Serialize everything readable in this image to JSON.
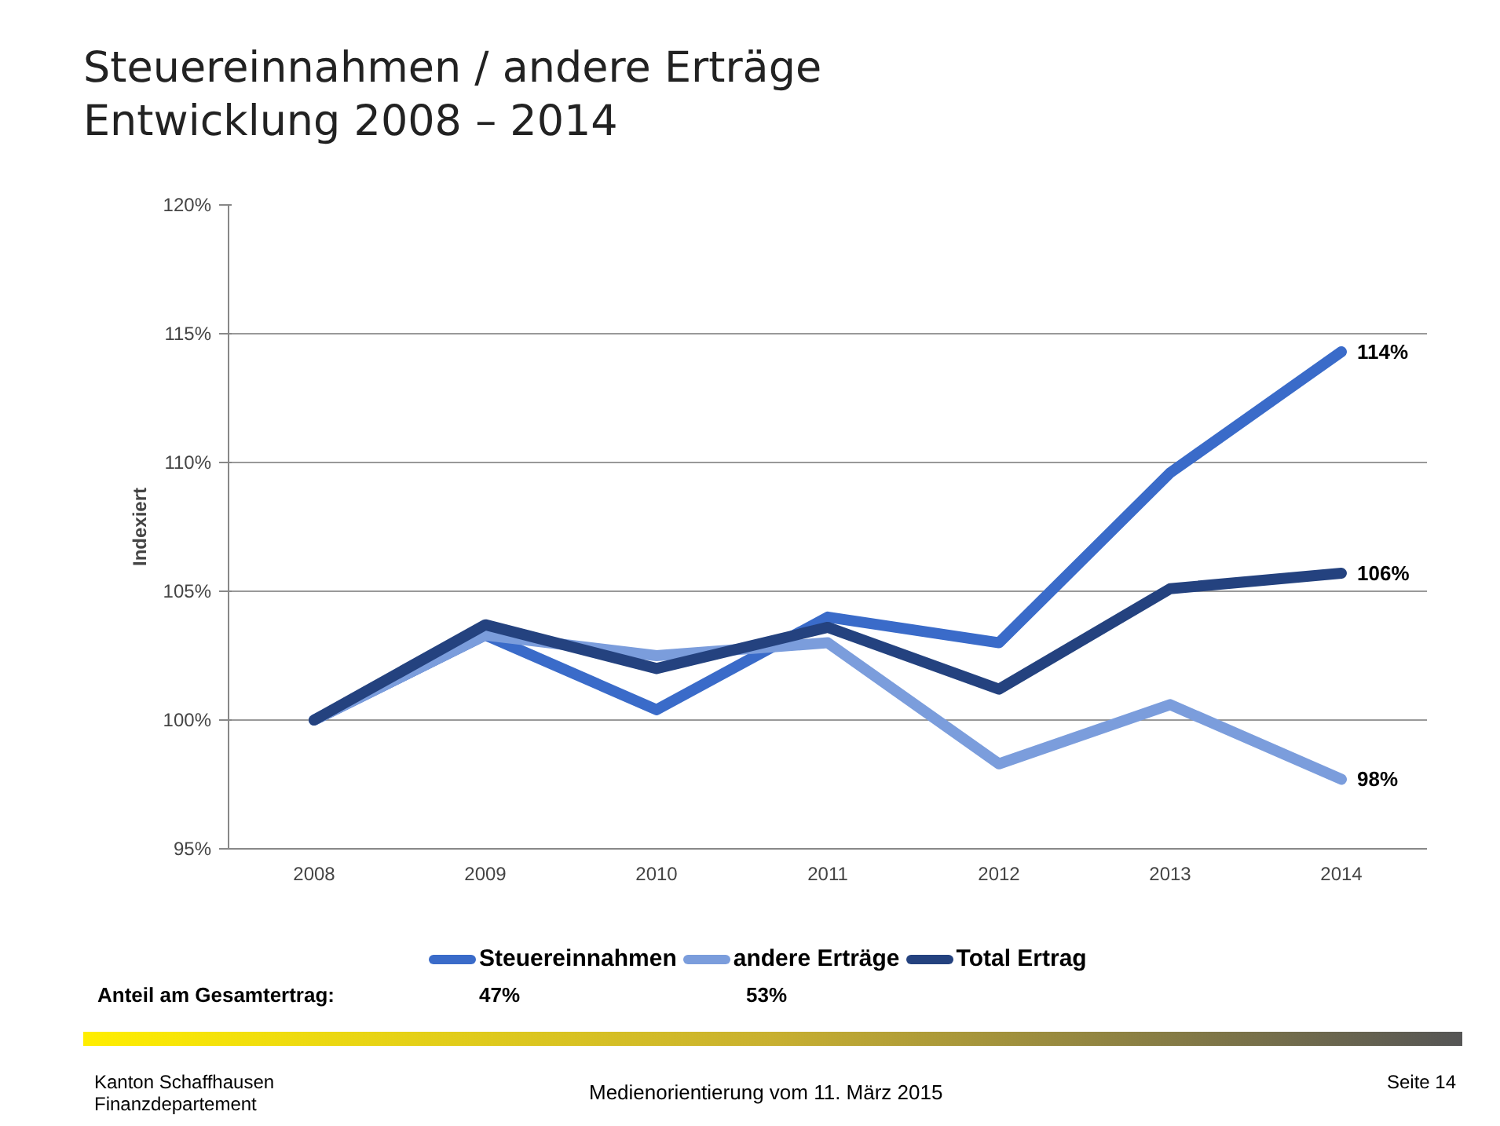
{
  "chart_data": {
    "type": "line",
    "title": "Steuereinnahmen / andere Erträge\nEntwicklung 2008 – 2014",
    "ylabel": "Indexiert",
    "categories": [
      "2008",
      "2009",
      "2010",
      "2011",
      "2012",
      "2013",
      "2014"
    ],
    "series": [
      {
        "name": "Steuereinnahmen",
        "color": "#3a6bc9",
        "values": [
          100,
          103.3,
          100.4,
          104.0,
          103.0,
          109.6,
          114.3
        ],
        "value_labels": [
          null,
          null,
          null,
          null,
          null,
          null,
          "114%"
        ]
      },
      {
        "name": "andere Erträge",
        "color": "#7b9ddc",
        "values": [
          100,
          103.3,
          102.5,
          103.0,
          98.3,
          100.6,
          97.7
        ],
        "value_labels": [
          null,
          null,
          null,
          null,
          null,
          null,
          "98%"
        ]
      },
      {
        "name": "Total Ertrag",
        "color": "#24427f",
        "values": [
          100,
          103.7,
          102.0,
          103.6,
          101.2,
          105.1,
          105.7
        ],
        "value_labels": [
          null,
          null,
          null,
          null,
          null,
          null,
          "106%"
        ]
      }
    ],
    "ylim": [
      95,
      120
    ],
    "yticks": [
      {
        "value": 95,
        "label": "95%"
      },
      {
        "value": 100,
        "label": "100%"
      },
      {
        "value": 105,
        "label": "105%"
      },
      {
        "value": 110,
        "label": "110%"
      },
      {
        "value": 115,
        "label": "115%"
      },
      {
        "value": 120,
        "label": "120%"
      }
    ],
    "grid": "y",
    "legend": "bottom",
    "marker": "none",
    "line_style": "solid",
    "annotations": [
      "Anteil am Gesamtertrag:",
      "47%",
      "53%",
      "Kanton Schaffhausen\nFinanzdepartement",
      "Medienorientierung vom 11. März 2015",
      "Seite 14"
    ]
  }
}
